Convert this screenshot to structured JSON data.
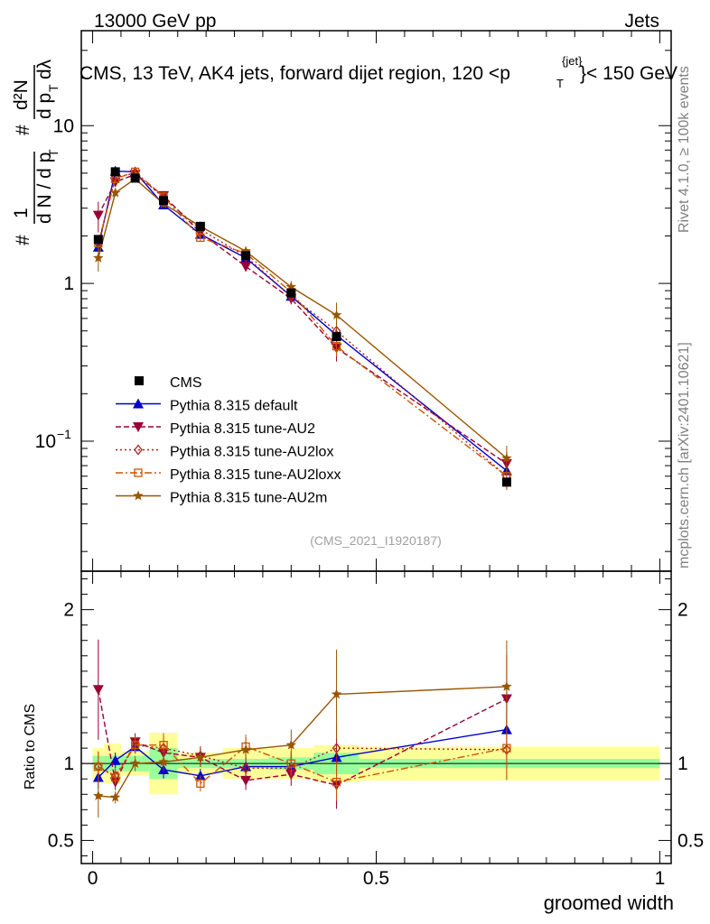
{
  "header": {
    "left": "13000 GeV pp",
    "right": "Jets"
  },
  "side_labels": {
    "rivet": "Rivet 4.1.0, ≥ 100k events",
    "mcplots": "mcplots.cern.ch [arXiv:2401.10621]"
  },
  "main_title": {
    "prefix": "CMS, 13 TeV, AK4 jets, forward dijet region, 120 <p",
    "sup": "{jet}",
    "sub": "T",
    "suffix": "}< 150 GeV"
  },
  "y_label_main": {
    "hash": "#",
    "one": "1",
    "den": "d N / d p",
    "den_sub": "T",
    "hash2": "#",
    "num2": "d²N",
    "den2": "d p",
    "den2_sub": "T",
    "dlambda": "dλ"
  },
  "y_label_ratio": "Ratio to CMS",
  "x_label": "groomed width",
  "watermark": "(CMS_2021_I1920187)",
  "colors": {
    "cms": "#000000",
    "default": "#0000cc",
    "au2": "#990033",
    "au2lox": "#aa2222",
    "au2loxx": "#cc5500",
    "au2m": "#995500",
    "band_inner": "#99ff99",
    "band_outer": "#ffff99"
  },
  "chart_data": {
    "type": "line",
    "x": [
      0.01,
      0.04,
      0.075,
      0.125,
      0.19,
      0.27,
      0.35,
      0.43,
      0.73
    ],
    "x_edges": [
      0.0,
      0.02,
      0.05,
      0.1,
      0.15,
      0.23,
      0.31,
      0.39,
      0.47,
      1.0
    ],
    "xlim": [
      -0.02,
      1.02
    ],
    "xticks": [
      {
        "v": 0,
        "label": "0"
      },
      {
        "v": 0.5,
        "label": "0.5"
      },
      {
        "v": 1,
        "label": "1"
      }
    ],
    "main": {
      "ylim_log": [
        0.015,
        40
      ],
      "yticks": [
        {
          "v": 0.1,
          "base": "10",
          "exp": "−1"
        },
        {
          "v": 1,
          "base": "1",
          "exp": ""
        },
        {
          "v": 10,
          "base": "10",
          "exp": ""
        }
      ]
    },
    "ratio": {
      "ylim": [
        0.35,
        2.25
      ],
      "yticks": [
        {
          "v": 0.5,
          "label": "0.5"
        },
        {
          "v": 1,
          "label": "1"
        },
        {
          "v": 2,
          "label": "2"
        }
      ]
    },
    "data": {
      "name": "CMS",
      "values": [
        1.9,
        5.1,
        4.65,
        3.35,
        2.3,
        1.5,
        0.87,
        0.46,
        0.055
      ],
      "band_inner": [
        0.05,
        0.05,
        0.05,
        0.1,
        0.03,
        0.03,
        0.04,
        0.07,
        0.03
      ],
      "band_outer": [
        0.1,
        0.13,
        0.08,
        0.2,
        0.07,
        0.1,
        0.1,
        0.12,
        0.11
      ]
    },
    "series": [
      {
        "name": "Pythia 8.315 default",
        "key": "default",
        "marker": "triangle-up",
        "dash": "",
        "values": [
          1.7,
          5.15,
          5.1,
          3.15,
          2.05,
          1.45,
          0.83,
          0.47,
          0.065
        ],
        "ratio": [
          0.91,
          1.02,
          1.11,
          0.96,
          0.92,
          0.98,
          0.98,
          1.04,
          1.22
        ],
        "err": [
          0.08,
          0.05,
          0.04,
          0.06,
          0.05,
          0.06,
          0.08,
          0.12,
          0.16
        ]
      },
      {
        "name": "Pythia 8.315 tune-AU2",
        "key": "au2",
        "marker": "triangle-down",
        "dash": "6,3",
        "values": [
          2.7,
          4.4,
          4.9,
          3.6,
          2.1,
          1.28,
          0.8,
          0.39,
          0.072
        ],
        "ratio": [
          1.48,
          0.88,
          1.14,
          1.07,
          1.04,
          0.89,
          0.93,
          0.86,
          1.42
        ],
        "err": [
          0.22,
          0.06,
          0.05,
          0.07,
          0.06,
          0.07,
          0.08,
          0.18,
          0.2
        ]
      },
      {
        "name": "Pythia 8.315 tune-AU2lox",
        "key": "au2lox",
        "marker": "diamond-open",
        "dash": "2,3",
        "values": [
          1.8,
          4.7,
          5.0,
          3.5,
          2.2,
          1.48,
          0.83,
          0.5,
          0.06
        ],
        "ratio": [
          0.98,
          0.92,
          1.12,
          1.1,
          1.05,
          0.97,
          0.97,
          1.1,
          1.09
        ],
        "err": [
          0.1,
          0.05,
          0.05,
          0.07,
          0.06,
          0.07,
          0.08,
          0.14,
          0.18
        ]
      },
      {
        "name": "Pythia 8.315 tune-AU2loxx",
        "key": "au2loxx",
        "marker": "square-open",
        "dash": "8,3,2,3",
        "values": [
          1.8,
          4.6,
          5.1,
          3.55,
          1.95,
          1.55,
          0.88,
          0.4,
          0.06
        ],
        "ratio": [
          0.98,
          0.91,
          1.12,
          1.12,
          0.87,
          1.11,
          1.0,
          0.88,
          1.1
        ],
        "err": [
          0.1,
          0.05,
          0.05,
          0.07,
          0.06,
          0.07,
          0.08,
          0.14,
          0.18
        ]
      },
      {
        "name": "Pythia 8.315 tune-AU2m",
        "key": "au2m",
        "marker": "star",
        "dash": "",
        "values": [
          1.45,
          3.75,
          4.6,
          3.2,
          2.3,
          1.6,
          0.95,
          0.63,
          0.078
        ],
        "ratio": [
          0.79,
          0.78,
          1.0,
          1.01,
          1.04,
          1.09,
          1.12,
          1.45,
          1.5
        ],
        "err": [
          0.18,
          0.05,
          0.05,
          0.06,
          0.06,
          0.07,
          0.09,
          0.2,
          0.2
        ]
      }
    ]
  }
}
